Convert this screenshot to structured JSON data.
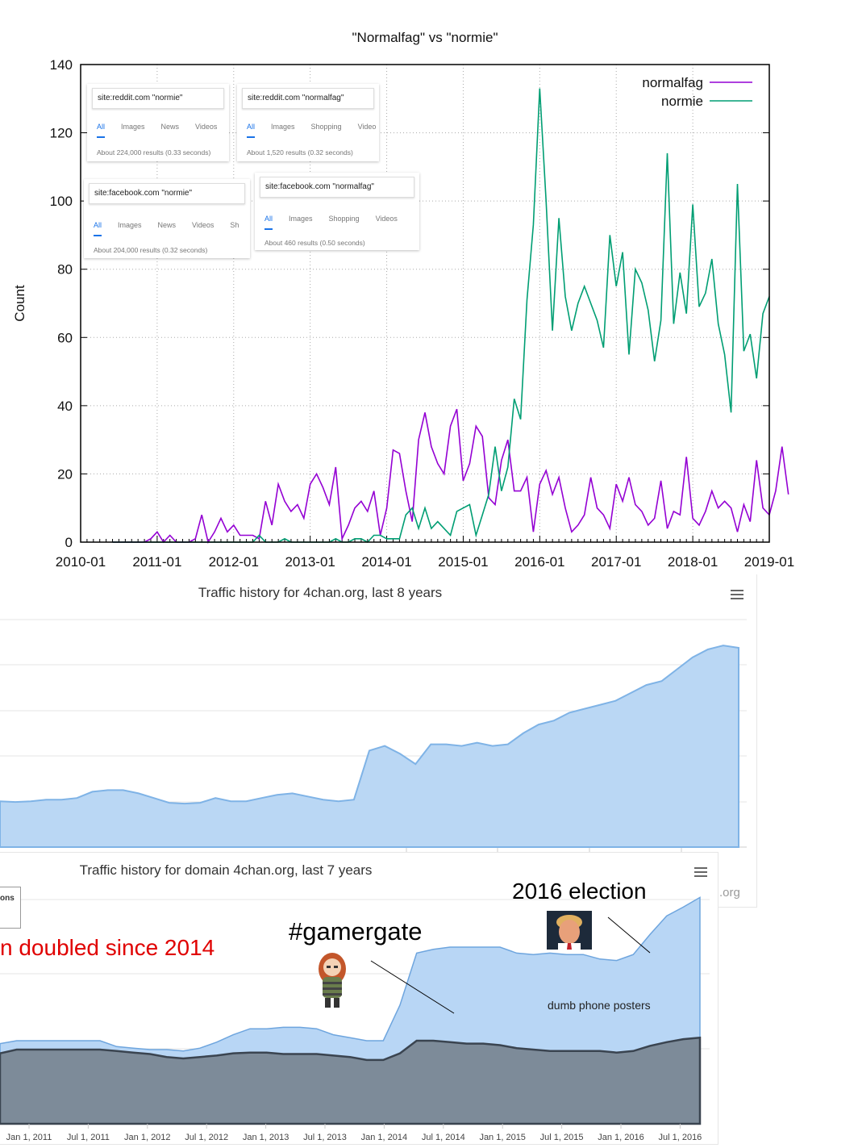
{
  "chart_data": [
    {
      "type": "line",
      "title": "\"Normalfag\" vs \"normie\"",
      "xlabel": "",
      "ylabel": "Count",
      "ylim": [
        0,
        140
      ],
      "yticks": [
        "0",
        "20",
        "40",
        "60",
        "80",
        "100",
        "120",
        "140"
      ],
      "xticks": [
        "2010-01",
        "2011-01",
        "2012-01",
        "2013-01",
        "2014-01",
        "2015-01",
        "2016-01",
        "2017-01",
        "2018-01",
        "2019-01"
      ],
      "x_start": "2010-01",
      "legend_position": "top-right",
      "grid": true,
      "series": [
        {
          "name": "normalfag",
          "color": "#9400d3",
          "values": [
            0,
            0,
            0,
            0,
            0,
            0,
            1,
            3,
            0,
            2,
            0,
            0,
            0,
            1,
            8,
            0,
            3,
            7,
            3,
            5,
            2,
            2,
            2,
            1,
            12,
            5,
            17,
            12,
            9,
            11,
            7,
            17,
            20,
            16,
            11,
            22,
            1,
            5,
            10,
            12,
            9,
            15,
            2,
            10,
            27,
            26,
            15,
            6,
            30,
            38,
            28,
            23,
            20,
            34,
            39,
            18,
            23,
            34,
            31,
            13,
            11,
            24,
            30,
            15,
            15,
            19,
            3,
            17,
            21,
            14,
            19,
            10,
            3,
            5,
            8,
            19,
            10,
            8,
            4,
            17,
            12,
            19,
            11,
            9,
            5,
            7,
            18,
            4,
            9,
            8,
            25,
            7,
            5,
            9,
            15,
            10,
            12,
            10,
            3,
            11,
            6,
            24,
            10,
            8,
            15,
            28,
            14
          ]
        },
        {
          "name": "normie",
          "color": "#009e73",
          "values": [
            0,
            0,
            0,
            0,
            0,
            0,
            0,
            0,
            0,
            0,
            0,
            0,
            0,
            0,
            0,
            0,
            0,
            0,
            0,
            0,
            0,
            0,
            0,
            2,
            0,
            0,
            0,
            1,
            0,
            0,
            0,
            0,
            0,
            0,
            0,
            1,
            0,
            0,
            1,
            1,
            0,
            2,
            2,
            1,
            1,
            1,
            8,
            10,
            4,
            10,
            4,
            6,
            4,
            2,
            9,
            10,
            11,
            2,
            8,
            14,
            28,
            15,
            22,
            42,
            36,
            71,
            93,
            133,
            100,
            62,
            95,
            72,
            62,
            70,
            75,
            70,
            65,
            57,
            90,
            75,
            85,
            55,
            80,
            76,
            68,
            53,
            65,
            114,
            64,
            79,
            67,
            99,
            69,
            73,
            83,
            64,
            55,
            38,
            105,
            56,
            61,
            48,
            67,
            72
          ]
        }
      ]
    },
    {
      "type": "area",
      "title": "Traffic history for 4chan.org, last 8 years",
      "color": "#a8cdf2",
      "values": [
        0.58,
        0.57,
        0.58,
        0.6,
        0.6,
        0.62,
        0.7,
        0.72,
        0.72,
        0.68,
        0.62,
        0.56,
        0.55,
        0.56,
        0.62,
        0.58,
        0.58,
        0.62,
        0.66,
        0.68,
        0.64,
        0.6,
        0.58,
        0.6,
        1.22,
        1.28,
        1.18,
        1.05,
        1.3,
        1.3,
        1.28,
        1.32,
        1.28,
        1.3,
        1.44,
        1.55,
        1.6,
        1.7,
        1.75,
        1.8,
        1.85,
        1.95,
        2.05,
        2.1,
        2.25,
        2.4,
        2.5,
        2.55,
        2.52
      ]
    },
    {
      "type": "area",
      "title": "Traffic history for domain 4chan.org, last 7 years",
      "xticks": [
        "Jan 1, 2011",
        "Jul 1, 2011",
        "Jan 1, 2012",
        "Jul 1, 2012",
        "Jan 1, 2013",
        "Jul 1, 2013",
        "Jan 1, 2014",
        "Jul 1, 2014",
        "Jan 1, 2015",
        "Jul 1, 2015",
        "Jan 1, 2016",
        "Jul 1, 2016"
      ],
      "series": [
        {
          "color": "#b4d4f4",
          "values": [
            1.08,
            1.12,
            1.12,
            1.12,
            1.12,
            1.12,
            1.12,
            1.04,
            1.02,
            1.0,
            1.0,
            0.98,
            1.02,
            1.1,
            1.2,
            1.28,
            1.28,
            1.3,
            1.3,
            1.28,
            1.2,
            1.16,
            1.12,
            1.12,
            1.6,
            2.3,
            2.35,
            2.38,
            2.38,
            2.38,
            2.38,
            2.3,
            2.28,
            2.3,
            2.28,
            2.28,
            2.22,
            2.2,
            2.28,
            2.55,
            2.8,
            2.92,
            3.05
          ]
        },
        {
          "color": "#7e8d9b",
          "values": [
            0.95,
            1.0,
            1.0,
            1.0,
            1.0,
            1.0,
            1.0,
            0.98,
            0.96,
            0.94,
            0.9,
            0.88,
            0.9,
            0.92,
            0.95,
            0.96,
            0.96,
            0.94,
            0.94,
            0.94,
            0.92,
            0.9,
            0.86,
            0.86,
            0.95,
            1.12,
            1.12,
            1.1,
            1.08,
            1.08,
            1.06,
            1.02,
            1.0,
            0.98,
            0.98,
            0.98,
            0.98,
            0.96,
            0.98,
            1.05,
            1.1,
            1.14,
            1.16
          ]
        }
      ]
    }
  ],
  "searches": [
    {
      "query": "site:reddit.com \"normie\"",
      "tabs": [
        "All",
        "Images",
        "News",
        "Videos"
      ],
      "results": "About 224,000 results (0.33 seconds)"
    },
    {
      "query": "site:reddit.com \"normalfag\"",
      "tabs": [
        "All",
        "Images",
        "Shopping",
        "Video"
      ],
      "results": "About 1,520 results (0.32 seconds)"
    },
    {
      "query": "site:facebook.com \"normie\"",
      "tabs": [
        "All",
        "Images",
        "News",
        "Videos",
        "Sh"
      ],
      "results": "About 204,000 results (0.32 seconds)"
    },
    {
      "query": "site:facebook.com \"normalfag\"",
      "tabs": [
        "All",
        "Images",
        "Shopping",
        "Videos"
      ],
      "results": "About 460 results (0.50 seconds)"
    }
  ],
  "annotations": {
    "doubled": "n doubled since 2014",
    "gamergate": "#gamergate",
    "election": "2016 election",
    "dumb": "dumb phone posters",
    "ons": "ons",
    "org": ".org"
  }
}
